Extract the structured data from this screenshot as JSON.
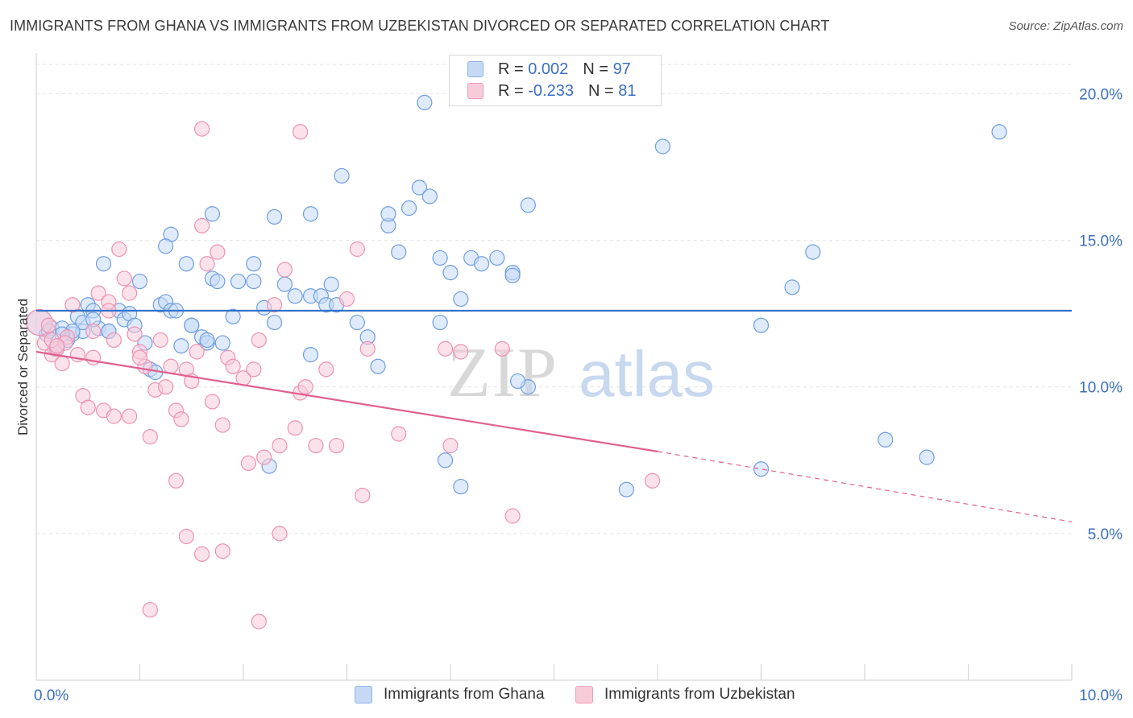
{
  "title": "IMMIGRANTS FROM GHANA VS IMMIGRANTS FROM UZBEKISTAN DIVORCED OR SEPARATED CORRELATION CHART",
  "source": "Source: ZipAtlas.com",
  "watermark": {
    "zip": "ZIP",
    "atlas": "atlas"
  },
  "legend": {
    "rows": [
      {
        "r_label": "R =",
        "r_value": "0.002",
        "n_label": "N =",
        "n_value": "97",
        "color": "#a8c8f0"
      },
      {
        "r_label": "R =",
        "r_value": "-0.233",
        "n_label": "N =",
        "n_value": "81",
        "color": "#f6b8cb"
      }
    ]
  },
  "chart_data": {
    "type": "scatter",
    "title": "IMMIGRANTS FROM GHANA VS IMMIGRANTS FROM UZBEKISTAN DIVORCED OR SEPARATED CORRELATION CHART",
    "xlabel": "",
    "ylabel": "Divorced or Separated",
    "xlim": [
      0,
      10
    ],
    "ylim": [
      0,
      21
    ],
    "x_tick_labels": [
      "0.0%",
      "10.0%"
    ],
    "y_tick_labels": [
      "5.0%",
      "10.0%",
      "15.0%",
      "20.0%"
    ],
    "y_ticks": [
      5,
      10,
      15,
      20
    ],
    "grid": true,
    "legend_position": "top-center",
    "series": [
      {
        "name": "Immigrants from Ghana",
        "color": "#6f9ee0",
        "fill": "#c5d9f5",
        "trend": {
          "x": [
            0,
            10
          ],
          "y": [
            12.6,
            12.6
          ],
          "color": "#3472c9"
        },
        "points": [
          [
            0.03,
            12.2
          ],
          [
            0.1,
            11.8
          ],
          [
            0.15,
            12
          ],
          [
            0.18,
            11.3
          ],
          [
            0.25,
            12
          ],
          [
            0.3,
            11.6
          ],
          [
            0.35,
            11.8
          ],
          [
            0.4,
            12.4
          ],
          [
            0.45,
            11.9
          ],
          [
            0.5,
            12.8
          ],
          [
            0.55,
            12.6
          ],
          [
            0.6,
            12
          ],
          [
            0.7,
            11.9
          ],
          [
            0.65,
            14.2
          ],
          [
            0.8,
            12.6
          ],
          [
            0.85,
            12.3
          ],
          [
            0.9,
            12.5
          ],
          [
            0.95,
            12.1
          ],
          [
            1.0,
            13.6
          ],
          [
            1.05,
            11.5
          ],
          [
            1.1,
            10.6
          ],
          [
            1.15,
            10.5
          ],
          [
            1.2,
            12.8
          ],
          [
            1.25,
            12.9
          ],
          [
            1.3,
            12.6
          ],
          [
            1.35,
            12.6
          ],
          [
            1.4,
            11.4
          ],
          [
            1.45,
            14.2
          ],
          [
            1.5,
            12.1
          ],
          [
            1.6,
            11.7
          ],
          [
            1.65,
            11.5
          ],
          [
            1.7,
            13.7
          ],
          [
            1.75,
            13.6
          ],
          [
            1.8,
            11.5
          ],
          [
            1.9,
            12.4
          ],
          [
            1.95,
            13.6
          ],
          [
            2.1,
            13.6
          ],
          [
            2.2,
            12.7
          ],
          [
            2.3,
            12.2
          ],
          [
            2.4,
            13.5
          ],
          [
            2.5,
            13.1
          ],
          [
            2.65,
            13.1
          ],
          [
            2.75,
            13.1
          ],
          [
            2.8,
            12.8
          ],
          [
            2.85,
            13.5
          ],
          [
            2.95,
            17.2
          ],
          [
            2.9,
            12.8
          ],
          [
            3.1,
            12.2
          ],
          [
            3.2,
            11.7
          ],
          [
            3.3,
            10.7
          ],
          [
            3.4,
            15.5
          ],
          [
            3.5,
            14.6
          ],
          [
            3.6,
            16.1
          ],
          [
            3.7,
            16.8
          ],
          [
            3.8,
            16.5
          ],
          [
            3.9,
            14.4
          ],
          [
            4.0,
            13.9
          ],
          [
            4.2,
            14.4
          ],
          [
            4.3,
            14.2
          ],
          [
            4.45,
            14.4
          ],
          [
            4.6,
            13.9
          ],
          [
            4.75,
            16.2
          ],
          [
            1.7,
            15.9
          ],
          [
            2.3,
            15.8
          ],
          [
            2.65,
            15.9
          ],
          [
            3.4,
            15.9
          ],
          [
            3.75,
            19.7
          ],
          [
            1.3,
            15.2
          ],
          [
            1.25,
            14.8
          ],
          [
            3.9,
            12.2
          ],
          [
            4.1,
            13
          ],
          [
            4.6,
            13.8
          ],
          [
            4.75,
            10
          ],
          [
            3.95,
            7.5
          ],
          [
            4.1,
            6.6
          ],
          [
            4.65,
            10.2
          ],
          [
            5.7,
            6.5
          ],
          [
            6.05,
            18.2
          ],
          [
            7.0,
            7.2
          ],
          [
            7.0,
            12.1
          ],
          [
            7.3,
            13.4
          ],
          [
            7.5,
            14.6
          ],
          [
            8.2,
            8.2
          ],
          [
            8.6,
            7.6
          ],
          [
            9.3,
            18.7
          ],
          [
            2.25,
            7.3
          ],
          [
            2.65,
            11.1
          ],
          [
            2.1,
            14.2
          ],
          [
            0.45,
            12.2
          ],
          [
            0.55,
            12.3
          ],
          [
            0.7,
            11.9
          ],
          [
            1.65,
            11.6
          ],
          [
            1.5,
            12.1
          ],
          [
            0.35,
            11.9
          ],
          [
            0.25,
            11.8
          ],
          [
            0.12,
            11.9
          ],
          [
            0.2,
            11.3
          ]
        ]
      },
      {
        "name": "Immigrants from Uzbekistan",
        "color": "#ee91b0",
        "fill": "#f8cbd9",
        "trend": {
          "x": [
            0,
            6
          ],
          "y": [
            11.2,
            7.8
          ],
          "color": "#e0608f"
        },
        "trend_ext": {
          "x": [
            6,
            10
          ],
          "y": [
            7.8,
            5.4
          ]
        },
        "points": [
          [
            0.03,
            12.2
          ],
          [
            0.08,
            11.5
          ],
          [
            0.15,
            11.1
          ],
          [
            0.2,
            11.3
          ],
          [
            0.25,
            10.8
          ],
          [
            0.3,
            11.7
          ],
          [
            0.35,
            12.8
          ],
          [
            0.4,
            11.1
          ],
          [
            0.45,
            9.7
          ],
          [
            0.5,
            9.3
          ],
          [
            0.55,
            11.9
          ],
          [
            0.6,
            13.2
          ],
          [
            0.65,
            9.2
          ],
          [
            0.7,
            12.9
          ],
          [
            0.75,
            11.6
          ],
          [
            0.8,
            14.7
          ],
          [
            0.85,
            13.7
          ],
          [
            0.9,
            9
          ],
          [
            0.95,
            11.8
          ],
          [
            1.0,
            11.2
          ],
          [
            1.05,
            10.7
          ],
          [
            1.1,
            8.3
          ],
          [
            1.15,
            9.9
          ],
          [
            1.2,
            11.6
          ],
          [
            1.25,
            10
          ],
          [
            1.3,
            10.7
          ],
          [
            1.35,
            9.2
          ],
          [
            1.4,
            8.9
          ],
          [
            1.45,
            10.6
          ],
          [
            1.5,
            10.2
          ],
          [
            1.55,
            11.2
          ],
          [
            1.6,
            15.5
          ],
          [
            1.65,
            14.2
          ],
          [
            1.7,
            9.5
          ],
          [
            1.75,
            14.6
          ],
          [
            1.8,
            8.7
          ],
          [
            1.85,
            11
          ],
          [
            1.9,
            10.7
          ],
          [
            2.0,
            10.3
          ],
          [
            2.05,
            7.4
          ],
          [
            2.1,
            10.6
          ],
          [
            2.15,
            11.6
          ],
          [
            2.2,
            7.6
          ],
          [
            2.3,
            12.8
          ],
          [
            2.35,
            8
          ],
          [
            2.4,
            14
          ],
          [
            2.5,
            8.6
          ],
          [
            2.55,
            9.8
          ],
          [
            2.6,
            10
          ],
          [
            2.7,
            8
          ],
          [
            2.8,
            10.6
          ],
          [
            2.9,
            8
          ],
          [
            3.0,
            13
          ],
          [
            3.1,
            14.7
          ],
          [
            3.15,
            6.3
          ],
          [
            3.2,
            11.3
          ],
          [
            3.5,
            8.4
          ],
          [
            3.95,
            11.3
          ],
          [
            4.0,
            8
          ],
          [
            4.1,
            11.2
          ],
          [
            4.5,
            11.3
          ],
          [
            4.6,
            5.6
          ],
          [
            5.95,
            6.8
          ],
          [
            1.1,
            2.4
          ],
          [
            1.35,
            6.8
          ],
          [
            1.45,
            4.9
          ],
          [
            1.6,
            4.3
          ],
          [
            1.8,
            4.4
          ],
          [
            2.15,
            2
          ],
          [
            2.35,
            5
          ],
          [
            1.6,
            18.8
          ],
          [
            2.55,
            18.7
          ],
          [
            0.15,
            11.6
          ],
          [
            0.28,
            11.5
          ],
          [
            0.12,
            12.1
          ],
          [
            0.55,
            11
          ],
          [
            0.7,
            12.6
          ],
          [
            0.9,
            13.2
          ],
          [
            1.0,
            11
          ],
          [
            0.75,
            9
          ],
          [
            0.2,
            11.4
          ]
        ]
      }
    ]
  }
}
